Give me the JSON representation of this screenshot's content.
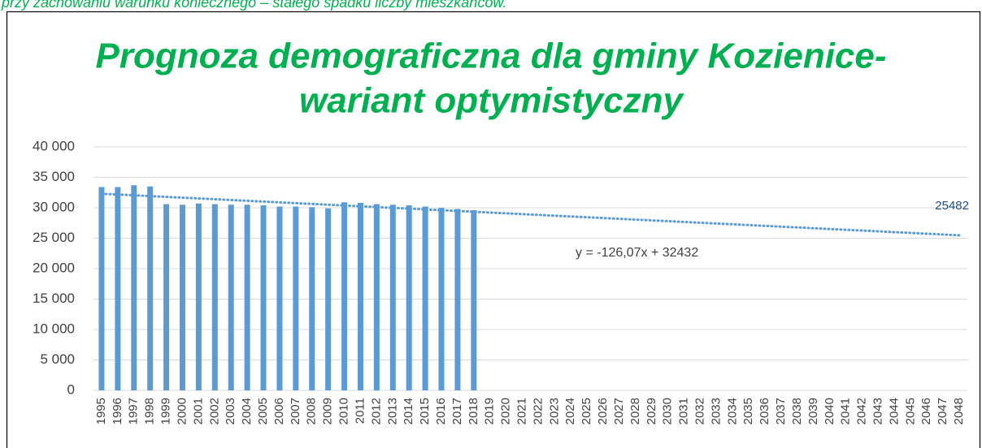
{
  "note_text": "przy zachowaniu warunku koniecznego – stałego spadku liczby mieszkańców.",
  "chart_data": {
    "type": "bar",
    "title": [
      "Prognoza demograficzna dla gminy Kozienice-",
      "wariant optymistyczny"
    ],
    "categories": [
      "1995",
      "1996",
      "1997",
      "1998",
      "1999",
      "2000",
      "2001",
      "2002",
      "2003",
      "2004",
      "2005",
      "2006",
      "2007",
      "2008",
      "2009",
      "2010",
      "2011",
      "2012",
      "2013",
      "2014",
      "2015",
      "2016",
      "2017",
      "2018",
      "2019",
      "2020",
      "2021",
      "2022",
      "2023",
      "2024",
      "2025",
      "2026",
      "2027",
      "2028",
      "2029",
      "2030",
      "2031",
      "2032",
      "2033",
      "2034",
      "2035",
      "2036",
      "2037",
      "2038",
      "2039",
      "2040",
      "2041",
      "2042",
      "2043",
      "2044",
      "2045",
      "2046",
      "2047",
      "2048"
    ],
    "values": [
      33400,
      33400,
      33700,
      33500,
      30600,
      30500,
      30700,
      30600,
      30500,
      30500,
      30400,
      30200,
      30200,
      30100,
      29900,
      30900,
      30800,
      30600,
      30500,
      30400,
      30200,
      30000,
      29800,
      29600,
      null,
      null,
      null,
      null,
      null,
      null,
      null,
      null,
      null,
      null,
      null,
      null,
      null,
      null,
      null,
      null,
      null,
      null,
      null,
      null,
      null,
      null,
      null,
      null,
      null,
      null,
      null,
      null,
      null,
      null
    ],
    "color": "#5b9bd5",
    "ylim": [
      0,
      40000
    ],
    "yticks": [
      0,
      {
        "value": 5000,
        "label": "5 000"
      },
      {
        "value": 10000,
        "label": "10 000"
      },
      {
        "value": 15000,
        "label": "15 000"
      },
      {
        "value": 20000,
        "label": "20 000"
      },
      {
        "value": 25000,
        "label": "25 000"
      },
      {
        "value": 30000,
        "label": "30 000"
      },
      {
        "value": 35000,
        "label": "35 000"
      },
      {
        "value": 40000,
        "label": "40 000"
      }
    ],
    "grid": true,
    "trendline": {
      "start": 32306,
      "end": 25482,
      "color": "#5b9bd5",
      "equation": "y = -126,07x + 32432"
    }
  }
}
